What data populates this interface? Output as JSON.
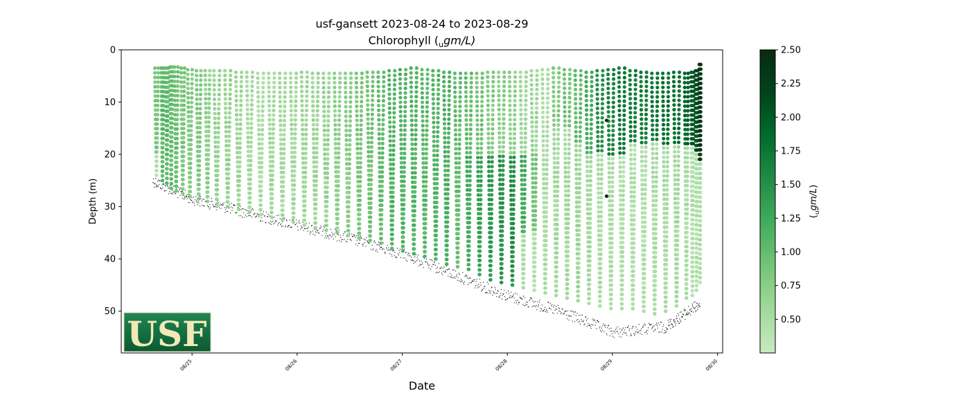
{
  "chart_data": {
    "type": "scatter",
    "title": "usf-gansett 2023-08-24 to 2023-08-29",
    "subtitle_main": "Chlorophyll (",
    "subtitle_sub": "u",
    "subtitle_rest": "gm/L)",
    "xlabel": "Date",
    "ylabel": "Depth (m)",
    "x_tick_labels": [
      "08/25",
      "08/26",
      "08/27",
      "08/28",
      "08/29",
      "08/30"
    ],
    "x_ticks": [
      "2023-08-25",
      "2023-08-26",
      "2023-08-27",
      "2023-08-28",
      "2023-08-29",
      "2023-08-30"
    ],
    "xlim": [
      "2023-08-24T07:50",
      "2023-08-30T01:10"
    ],
    "ylim": [
      58,
      0
    ],
    "y_inverted": true,
    "y_ticks": [
      0,
      10,
      20,
      30,
      40,
      50
    ],
    "colorbar": {
      "label_sub": "u",
      "label_rest": "gm/L",
      "range": [
        0.25,
        2.5
      ],
      "ticks": [
        0.5,
        0.75,
        1.0,
        1.25,
        1.5,
        1.75,
        2.0,
        2.25,
        2.5
      ],
      "tick_labels": [
        "0.50",
        "0.75",
        "1.00",
        "1.25",
        "1.50",
        "1.75",
        "2.00",
        "2.25",
        "2.50"
      ],
      "colormap": [
        "#f7fcf5",
        "#c7e9c0",
        "#a1d99b",
        "#74c476",
        "#41ab5d",
        "#238b45",
        "#006d2c",
        "#00441b",
        "#0b2a12"
      ],
      "outline": "#000000"
    },
    "profile_points_count_description": "Glider profiles of chlorophyll vs depth; depth increases over time as the glider moves offshore.",
    "series": [
      {
        "name": "",
        "kind": "chlorophyll-profiles",
        "profiles": [
          {
            "t": "2023-08-24T15:30",
            "top": 3.5,
            "bottom": 24.0,
            "zones": [
              [
                0,
                20,
                0.85
              ],
              [
                20,
                24,
                0.45
              ]
            ]
          },
          {
            "t": "2023-08-24T17:00",
            "top": 3.5,
            "bottom": 25.0,
            "zones": [
              [
                0,
                24,
                1.05
              ]
            ]
          },
          {
            "t": "2023-08-24T18:00",
            "top": 3.5,
            "bottom": 25.5,
            "zones": [
              [
                0,
                25.5,
                1.05
              ]
            ]
          },
          {
            "t": "2023-08-24T19:00",
            "top": 3.3,
            "bottom": 26.5,
            "zones": [
              [
                0,
                26.5,
                1.0
              ]
            ]
          },
          {
            "t": "2023-08-24T20:00",
            "top": 3.3,
            "bottom": 27.0,
            "zones": [
              [
                0,
                27,
                0.95
              ]
            ]
          },
          {
            "t": "2023-08-24T21:30",
            "top": 3.5,
            "bottom": 27.5,
            "zones": [
              [
                0,
                27.5,
                0.85
              ]
            ]
          },
          {
            "t": "2023-08-24T23:00",
            "top": 3.8,
            "bottom": 28.0,
            "zones": [
              [
                0,
                28,
                0.8
              ]
            ]
          },
          {
            "t": "2023-08-25T01:00",
            "top": 4.0,
            "bottom": 28.5,
            "zones": [
              [
                0,
                28.5,
                0.8
              ]
            ]
          },
          {
            "t": "2023-08-25T03:00",
            "top": 4.0,
            "bottom": 29.0,
            "zones": [
              [
                0,
                29,
                0.7
              ]
            ]
          },
          {
            "t": "2023-08-25T05:00",
            "top": 4.0,
            "bottom": 29.5,
            "zones": [
              [
                0,
                29.5,
                0.65
              ]
            ]
          },
          {
            "t": "2023-08-25T07:30",
            "top": 4.0,
            "bottom": 30.0,
            "zones": [
              [
                0,
                30,
                0.65
              ]
            ]
          },
          {
            "t": "2023-08-25T10:00",
            "top": 4.3,
            "bottom": 30.5,
            "zones": [
              [
                0,
                30.5,
                0.6
              ]
            ]
          },
          {
            "t": "2023-08-25T12:30",
            "top": 4.3,
            "bottom": 31.0,
            "zones": [
              [
                0,
                31,
                0.55
              ]
            ]
          },
          {
            "t": "2023-08-25T15:00",
            "top": 4.5,
            "bottom": 31.5,
            "zones": [
              [
                0,
                31.5,
                0.5
              ]
            ]
          },
          {
            "t": "2023-08-25T17:30",
            "top": 4.5,
            "bottom": 32.0,
            "zones": [
              [
                0,
                32,
                0.55
              ]
            ]
          },
          {
            "t": "2023-08-25T20:00",
            "top": 4.5,
            "bottom": 32.5,
            "zones": [
              [
                0,
                32.5,
                0.55
              ]
            ]
          },
          {
            "t": "2023-08-25T22:30",
            "top": 4.5,
            "bottom": 33.0,
            "zones": [
              [
                0,
                33,
                0.55
              ]
            ]
          },
          {
            "t": "2023-08-26T01:00",
            "top": 4.3,
            "bottom": 33.5,
            "zones": [
              [
                0,
                33.5,
                0.6
              ]
            ]
          },
          {
            "t": "2023-08-26T03:30",
            "top": 4.5,
            "bottom": 34.0,
            "zones": [
              [
                0,
                34,
                0.6
              ]
            ]
          },
          {
            "t": "2023-08-26T06:00",
            "top": 4.5,
            "bottom": 34.5,
            "zones": [
              [
                0,
                34.5,
                0.65
              ]
            ]
          },
          {
            "t": "2023-08-26T08:30",
            "top": 4.5,
            "bottom": 35.0,
            "zones": [
              [
                0,
                35,
                0.7
              ]
            ]
          },
          {
            "t": "2023-08-26T11:00",
            "top": 4.5,
            "bottom": 35.5,
            "zones": [
              [
                0,
                35.5,
                0.75
              ]
            ]
          },
          {
            "t": "2023-08-26T13:30",
            "top": 4.5,
            "bottom": 36.0,
            "zones": [
              [
                0,
                36,
                0.85
              ]
            ]
          },
          {
            "t": "2023-08-26T16:00",
            "top": 4.3,
            "bottom": 36.5,
            "zones": [
              [
                0,
                36.5,
                0.9
              ]
            ]
          },
          {
            "t": "2023-08-26T18:30",
            "top": 4.3,
            "bottom": 37.0,
            "zones": [
              [
                0,
                37,
                1.0
              ]
            ]
          },
          {
            "t": "2023-08-26T21:00",
            "top": 4.0,
            "bottom": 38.0,
            "zones": [
              [
                0,
                38,
                1.1
              ]
            ]
          },
          {
            "t": "2023-08-26T23:30",
            "top": 3.8,
            "bottom": 38.5,
            "zones": [
              [
                0,
                38.5,
                1.1
              ]
            ]
          },
          {
            "t": "2023-08-27T02:00",
            "top": 3.5,
            "bottom": 39.0,
            "zones": [
              [
                0,
                39,
                1.1
              ]
            ]
          },
          {
            "t": "2023-08-27T04:30",
            "top": 3.8,
            "bottom": 39.5,
            "zones": [
              [
                0,
                39.5,
                1.05
              ]
            ]
          },
          {
            "t": "2023-08-27T07:00",
            "top": 4.0,
            "bottom": 40.0,
            "zones": [
              [
                0,
                40,
                1.1
              ]
            ]
          },
          {
            "t": "2023-08-27T09:30",
            "top": 4.3,
            "bottom": 41.0,
            "zones": [
              [
                0,
                41,
                1.15
              ]
            ]
          },
          {
            "t": "2023-08-27T12:00",
            "top": 4.5,
            "bottom": 41.5,
            "zones": [
              [
                0,
                41.5,
                1.0
              ]
            ]
          },
          {
            "t": "2023-08-27T14:30",
            "top": 4.5,
            "bottom": 42.0,
            "zones": [
              [
                0,
                20,
                1.0
              ],
              [
                20,
                42,
                1.2
              ]
            ]
          },
          {
            "t": "2023-08-27T17:00",
            "top": 4.5,
            "bottom": 43.0,
            "zones": [
              [
                0,
                20,
                0.9
              ],
              [
                20,
                43,
                1.3
              ]
            ]
          },
          {
            "t": "2023-08-27T19:30",
            "top": 4.3,
            "bottom": 44.0,
            "zones": [
              [
                0,
                20,
                0.8
              ],
              [
                20,
                44,
                1.4
              ]
            ]
          },
          {
            "t": "2023-08-27T22:00",
            "top": 4.3,
            "bottom": 44.5,
            "zones": [
              [
                0,
                20,
                0.75
              ],
              [
                20,
                44.5,
                1.45
              ]
            ]
          },
          {
            "t": "2023-08-28T00:30",
            "top": 4.3,
            "bottom": 45.0,
            "zones": [
              [
                0,
                20,
                0.7
              ],
              [
                20,
                45,
                1.5
              ]
            ]
          },
          {
            "t": "2023-08-28T03:00",
            "top": 4.3,
            "bottom": 45.5,
            "zones": [
              [
                0,
                20,
                0.6
              ],
              [
                20,
                35,
                1.2
              ],
              [
                35,
                45.5,
                0.5
              ]
            ]
          },
          {
            "t": "2023-08-28T05:30",
            "top": 4.0,
            "bottom": 46.0,
            "zones": [
              [
                0,
                20,
                0.6
              ],
              [
                20,
                35,
                0.9
              ],
              [
                35,
                46,
                0.45
              ]
            ]
          },
          {
            "t": "2023-08-28T08:00",
            "top": 3.8,
            "bottom": 46.5,
            "zones": [
              [
                0,
                46.5,
                0.5
              ]
            ]
          },
          {
            "t": "2023-08-28T10:30",
            "top": 3.5,
            "bottom": 47.0,
            "zones": [
              [
                0,
                15,
                0.8
              ],
              [
                15,
                47,
                0.55
              ]
            ]
          },
          {
            "t": "2023-08-28T13:00",
            "top": 3.8,
            "bottom": 47.5,
            "zones": [
              [
                0,
                15,
                0.9
              ],
              [
                15,
                47.5,
                0.55
              ]
            ]
          },
          {
            "t": "2023-08-28T15:30",
            "top": 4.0,
            "bottom": 48.0,
            "zones": [
              [
                0,
                18,
                1.0
              ],
              [
                18,
                48,
                0.6
              ]
            ]
          },
          {
            "t": "2023-08-28T18:00",
            "top": 4.3,
            "bottom": 48.5,
            "zones": [
              [
                0,
                20,
                1.2
              ],
              [
                20,
                48.5,
                0.55
              ]
            ]
          },
          {
            "t": "2023-08-28T20:30",
            "top": 4.0,
            "bottom": 49.0,
            "zones": [
              [
                0,
                20,
                1.5
              ],
              [
                20,
                49,
                0.5
              ]
            ]
          },
          {
            "t": "2023-08-28T23:00",
            "top": 3.8,
            "bottom": 49.5,
            "zones": [
              [
                0,
                20,
                1.6
              ],
              [
                20,
                49.5,
                0.5
              ]
            ]
          },
          {
            "t": "2023-08-29T01:30",
            "top": 3.5,
            "bottom": 49.5,
            "zones": [
              [
                0,
                20,
                1.7
              ],
              [
                20,
                49.5,
                0.45
              ]
            ]
          },
          {
            "t": "2023-08-29T04:00",
            "top": 4.0,
            "bottom": 49.5,
            "zones": [
              [
                0,
                18,
                1.7
              ],
              [
                18,
                49.5,
                0.45
              ]
            ]
          },
          {
            "t": "2023-08-29T06:30",
            "top": 4.3,
            "bottom": 50.0,
            "zones": [
              [
                0,
                18,
                1.7
              ],
              [
                18,
                50,
                0.45
              ]
            ]
          },
          {
            "t": "2023-08-29T09:00",
            "top": 4.5,
            "bottom": 50.5,
            "zones": [
              [
                0,
                18,
                1.75
              ],
              [
                18,
                50.5,
                0.5
              ]
            ]
          },
          {
            "t": "2023-08-29T11:30",
            "top": 4.5,
            "bottom": 50.0,
            "zones": [
              [
                0,
                18,
                1.8
              ],
              [
                18,
                50,
                0.5
              ]
            ]
          },
          {
            "t": "2023-08-29T14:00",
            "top": 4.3,
            "bottom": 49.0,
            "zones": [
              [
                0,
                18,
                1.8
              ],
              [
                18,
                49,
                0.55
              ]
            ]
          },
          {
            "t": "2023-08-29T16:30",
            "top": 4.5,
            "bottom": 47.5,
            "zones": [
              [
                0,
                18,
                1.9
              ],
              [
                18,
                47.5,
                0.5
              ]
            ]
          },
          {
            "t": "2023-08-29T18:00",
            "top": 4.3,
            "bottom": 47.0,
            "zones": [
              [
                0,
                18,
                2.0
              ],
              [
                18,
                47,
                0.45
              ]
            ]
          },
          {
            "t": "2023-08-29T19:00",
            "top": 4.0,
            "bottom": 46.0,
            "zones": [
              [
                0,
                20,
                2.1
              ],
              [
                20,
                46,
                0.45
              ]
            ]
          },
          {
            "t": "2023-08-29T19:50",
            "top": 2.8,
            "bottom": 44.5,
            "zones": [
              [
                0,
                21,
                2.35
              ],
              [
                21,
                44.5,
                0.45
              ]
            ]
          }
        ]
      },
      {
        "name": "",
        "kind": "bottom-depth-trace",
        "color": "#000000",
        "points": [
          {
            "t": "2023-08-24T15:00",
            "depth": 25.0
          },
          {
            "t": "2023-08-25T00:00",
            "depth": 28.5
          },
          {
            "t": "2023-08-25T12:00",
            "depth": 31.0
          },
          {
            "t": "2023-08-26T00:00",
            "depth": 33.5
          },
          {
            "t": "2023-08-26T12:00",
            "depth": 36.0
          },
          {
            "t": "2023-08-27T00:00",
            "depth": 39.0
          },
          {
            "t": "2023-08-27T12:00",
            "depth": 43.0
          },
          {
            "t": "2023-08-28T00:00",
            "depth": 47.0
          },
          {
            "t": "2023-08-28T12:00",
            "depth": 50.0
          },
          {
            "t": "2023-08-29T00:00",
            "depth": 54.0
          },
          {
            "t": "2023-08-29T12:00",
            "depth": 53.0
          },
          {
            "t": "2023-08-29T20:00",
            "depth": 48.5
          }
        ]
      }
    ]
  },
  "logo": {
    "text": "USF",
    "bg_top": "#1a7a4a",
    "bg_bottom": "#0b5a32",
    "text_color": "#f3e9b7"
  }
}
